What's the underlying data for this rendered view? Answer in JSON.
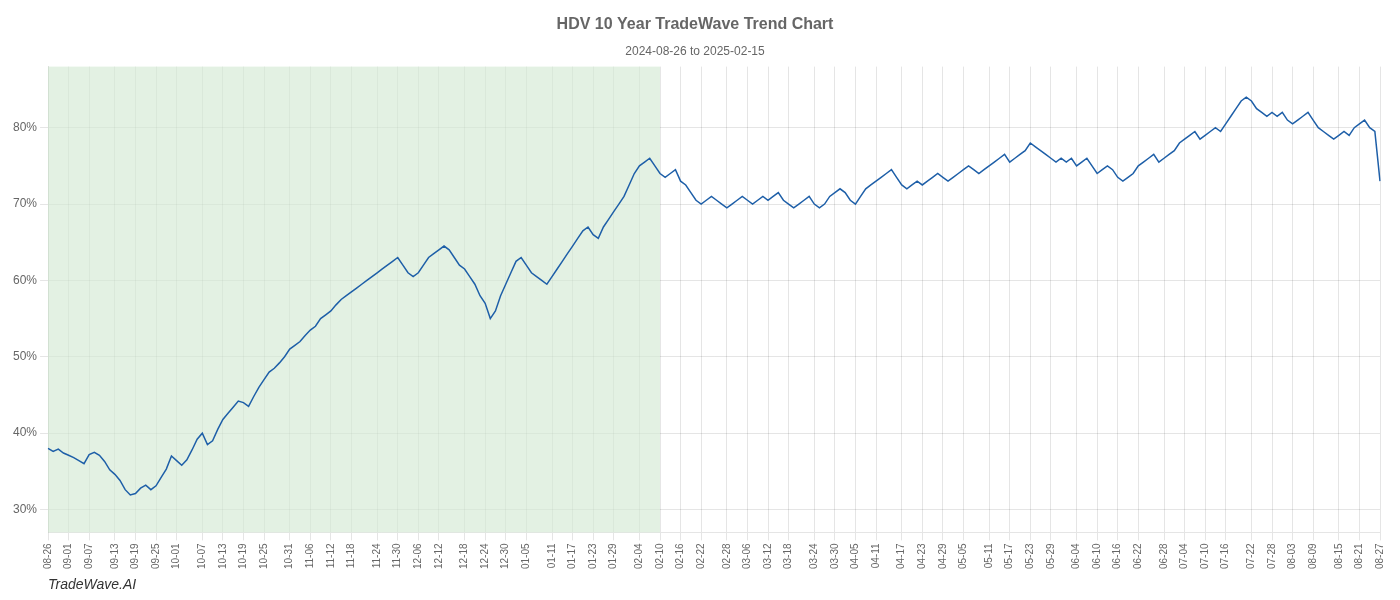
{
  "chart_data": {
    "type": "line",
    "title": "HDV 10 Year TradeWave Trend Chart",
    "subtitle": "2024-08-26 to 2025-02-15",
    "annotations": [
      "TradeWave.AI"
    ],
    "color": "#1e5fa8",
    "grid": true,
    "ylim": [
      27,
      88
    ],
    "yticks": [
      {
        "value": 30,
        "label": "30%"
      },
      {
        "value": 40,
        "label": "40%"
      },
      {
        "value": 50,
        "label": "50%"
      },
      {
        "value": 60,
        "label": "60%"
      },
      {
        "value": 70,
        "label": "70%"
      },
      {
        "value": 80,
        "label": "80%"
      }
    ],
    "shaded_region": {
      "from": "08-26",
      "to": "02-10",
      "color": "#d4ead4"
    },
    "categories": [
      "08-26",
      null,
      null,
      null,
      "09-01",
      null,
      null,
      null,
      "09-07",
      null,
      null,
      null,
      null,
      "09-13",
      null,
      null,
      null,
      "09-19",
      null,
      null,
      null,
      "09-25",
      null,
      null,
      null,
      "10-01",
      null,
      null,
      null,
      null,
      "10-07",
      null,
      null,
      null,
      "10-13",
      null,
      null,
      null,
      "10-19",
      null,
      null,
      null,
      "10-25",
      null,
      null,
      null,
      null,
      "10-31",
      null,
      null,
      null,
      "11-06",
      null,
      null,
      null,
      "11-12",
      null,
      null,
      null,
      "11-18",
      null,
      null,
      null,
      null,
      "11-24",
      null,
      null,
      null,
      "11-30",
      null,
      null,
      null,
      "12-06",
      null,
      null,
      null,
      "12-12",
      null,
      null,
      null,
      null,
      "12-18",
      null,
      null,
      null,
      "12-24",
      null,
      null,
      null,
      "12-30",
      null,
      null,
      null,
      "01-05",
      null,
      null,
      null,
      null,
      "01-11",
      null,
      null,
      null,
      "01-17",
      null,
      null,
      null,
      "01-23",
      null,
      null,
      null,
      "01-29",
      null,
      null,
      null,
      null,
      "02-04",
      null,
      null,
      null,
      "02-10",
      null,
      null,
      null,
      "02-16",
      null,
      null,
      null,
      "02-22",
      null,
      null,
      null,
      null,
      "02-28",
      null,
      null,
      null,
      "03-06",
      null,
      null,
      null,
      "03-12",
      null,
      null,
      null,
      "03-18",
      null,
      null,
      null,
      null,
      "03-24",
      null,
      null,
      null,
      "03-30",
      null,
      null,
      null,
      "04-05",
      null,
      null,
      null,
      "04-11",
      null,
      null,
      null,
      null,
      "04-17",
      null,
      null,
      null,
      "04-23",
      null,
      null,
      null,
      "04-29",
      null,
      null,
      null,
      "05-05",
      null,
      null,
      null,
      null,
      "05-11",
      null,
      null,
      null,
      "05-17",
      null,
      null,
      null,
      "05-23",
      null,
      null,
      null,
      "05-29",
      null,
      null,
      null,
      null,
      "06-04",
      null,
      null,
      null,
      "06-10",
      null,
      null,
      null,
      "06-16",
      null,
      null,
      null,
      "06-22",
      null,
      null,
      null,
      null,
      "06-28",
      null,
      null,
      null,
      "07-04",
      null,
      null,
      null,
      "07-10",
      null,
      null,
      null,
      "07-16",
      null,
      null,
      null,
      null,
      "07-22",
      null,
      null,
      null,
      "07-28",
      null,
      null,
      null,
      "08-03",
      null,
      null,
      null,
      "08-09",
      null,
      null,
      null,
      null,
      "08-15",
      null,
      null,
      null,
      "08-21",
      null,
      null,
      null,
      "08-27"
    ],
    "values": [
      38.0,
      37.6,
      37.9,
      37.4,
      37.1,
      36.8,
      36.4,
      36.0,
      37.2,
      37.5,
      37.1,
      36.3,
      35.2,
      34.6,
      33.8,
      32.6,
      31.9,
      32.1,
      32.8,
      33.2,
      32.6,
      33.1,
      34.2,
      35.3,
      37.0,
      36.4,
      35.8,
      36.5,
      37.8,
      39.2,
      40.0,
      38.5,
      39.0,
      40.5,
      41.8,
      42.6,
      43.4,
      44.2,
      44.0,
      43.5,
      44.8,
      46.0,
      47.0,
      48.0,
      48.5,
      49.2,
      50.0,
      51.0,
      51.5,
      52.0,
      52.8,
      53.5,
      54.0,
      55.0,
      55.5,
      56.0,
      56.8,
      57.5,
      58.0,
      58.5,
      59.0,
      59.5,
      60.0,
      60.5,
      61.0,
      61.5,
      62.0,
      62.5,
      63.0,
      62.0,
      61.0,
      60.5,
      61.0,
      62.0,
      63.0,
      63.5,
      64.0,
      64.5,
      64.0,
      63.0,
      62.0,
      61.5,
      60.5,
      59.5,
      58.0,
      57.0,
      55.0,
      56.0,
      58.0,
      59.5,
      61.0,
      62.5,
      63.0,
      62.0,
      61.0,
      60.5,
      60.0,
      59.5,
      60.5,
      61.5,
      62.5,
      63.5,
      64.5,
      65.5,
      66.5,
      67.0,
      66.0,
      65.5,
      67.0,
      68.0,
      69.0,
      70.0,
      71.0,
      72.5,
      74.0,
      75.0,
      75.5,
      76.0,
      75.0,
      74.0,
      73.5,
      74.0,
      74.5,
      73.0,
      72.5,
      71.5,
      70.5,
      70.0,
      70.5,
      71.0,
      70.5,
      70.0,
      69.5,
      70.0,
      70.5,
      71.0,
      70.5,
      70.0,
      70.5,
      71.0,
      70.5,
      71.0,
      71.5,
      70.5,
      70.0,
      69.5,
      70.0,
      70.5,
      71.0,
      70.0,
      69.5,
      70.0,
      71.0,
      71.5,
      72.0,
      71.5,
      70.5,
      70.0,
      71.0,
      72.0,
      72.5,
      73.0,
      73.5,
      74.0,
      74.5,
      73.5,
      72.5,
      72.0,
      72.5,
      73.0,
      72.5,
      73.0,
      73.5,
      74.0,
      73.5,
      73.0,
      73.5,
      74.0,
      74.5,
      75.0,
      74.5,
      74.0,
      74.5,
      75.0,
      75.5,
      76.0,
      76.5,
      75.5,
      76.0,
      76.5,
      77.0,
      78.0,
      77.5,
      77.0,
      76.5,
      76.0,
      75.5,
      76.0,
      75.5,
      76.0,
      75.0,
      75.5,
      76.0,
      75.0,
      74.0,
      74.5,
      75.0,
      74.5,
      73.5,
      73.0,
      73.5,
      74.0,
      75.0,
      75.5,
      76.0,
      76.5,
      75.5,
      76.0,
      76.5,
      77.0,
      78.0,
      78.5,
      79.0,
      79.5,
      78.5,
      79.0,
      79.5,
      80.0,
      79.5,
      80.5,
      81.5,
      82.5,
      83.5,
      84.0,
      83.5,
      82.5,
      82.0,
      81.5,
      82.0,
      81.5,
      82.0,
      81.0,
      80.5,
      81.0,
      81.5,
      82.0,
      81.0,
      80.0,
      79.5,
      79.0,
      78.5,
      79.0,
      79.5,
      79.0,
      80.0,
      80.5,
      81.0,
      80.0,
      79.5,
      73.0
    ]
  }
}
